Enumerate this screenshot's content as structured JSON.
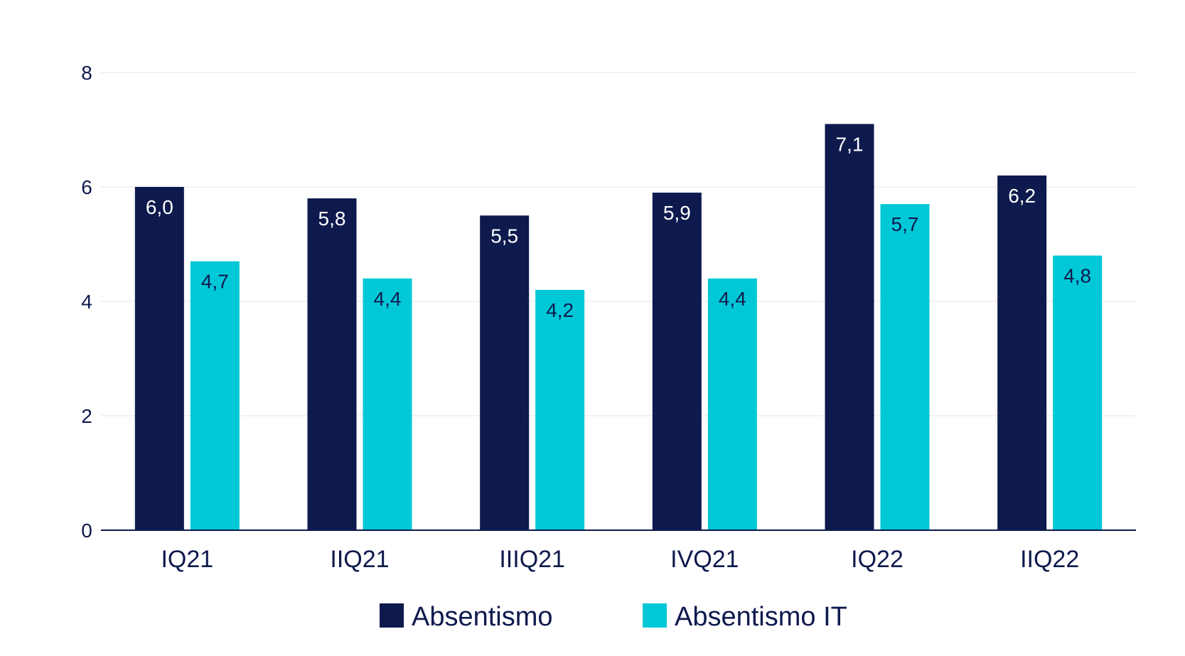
{
  "chart_data": {
    "type": "bar",
    "categories": [
      "IQ21",
      "IIQ21",
      "IIIQ21",
      "IVQ21",
      "IQ22",
      "IIQ22"
    ],
    "series": [
      {
        "name": "Absentismo",
        "values": [
          6.0,
          5.8,
          5.5,
          5.9,
          7.1,
          6.2
        ],
        "labels": [
          "6,0",
          "5,8",
          "5,5",
          "5,9",
          "7,1",
          "6,2"
        ],
        "color": "#0e1a4d",
        "label_color": "#ffffff"
      },
      {
        "name": "Absentismo IT",
        "values": [
          4.7,
          4.4,
          4.2,
          4.4,
          5.7,
          4.8
        ],
        "labels": [
          "4,7",
          "4,4",
          "4,2",
          "4,4",
          "5,7",
          "4,8"
        ],
        "color": "#00c8d7",
        "label_color": "#0e1a4d"
      }
    ],
    "y_ticks": [
      "0",
      "2",
      "4",
      "6",
      "8"
    ],
    "ylim": [
      0,
      8
    ],
    "grid": true,
    "legend": "bottom-center",
    "axis_color": "#0e1a4d",
    "grid_color": "#eeeeee"
  }
}
